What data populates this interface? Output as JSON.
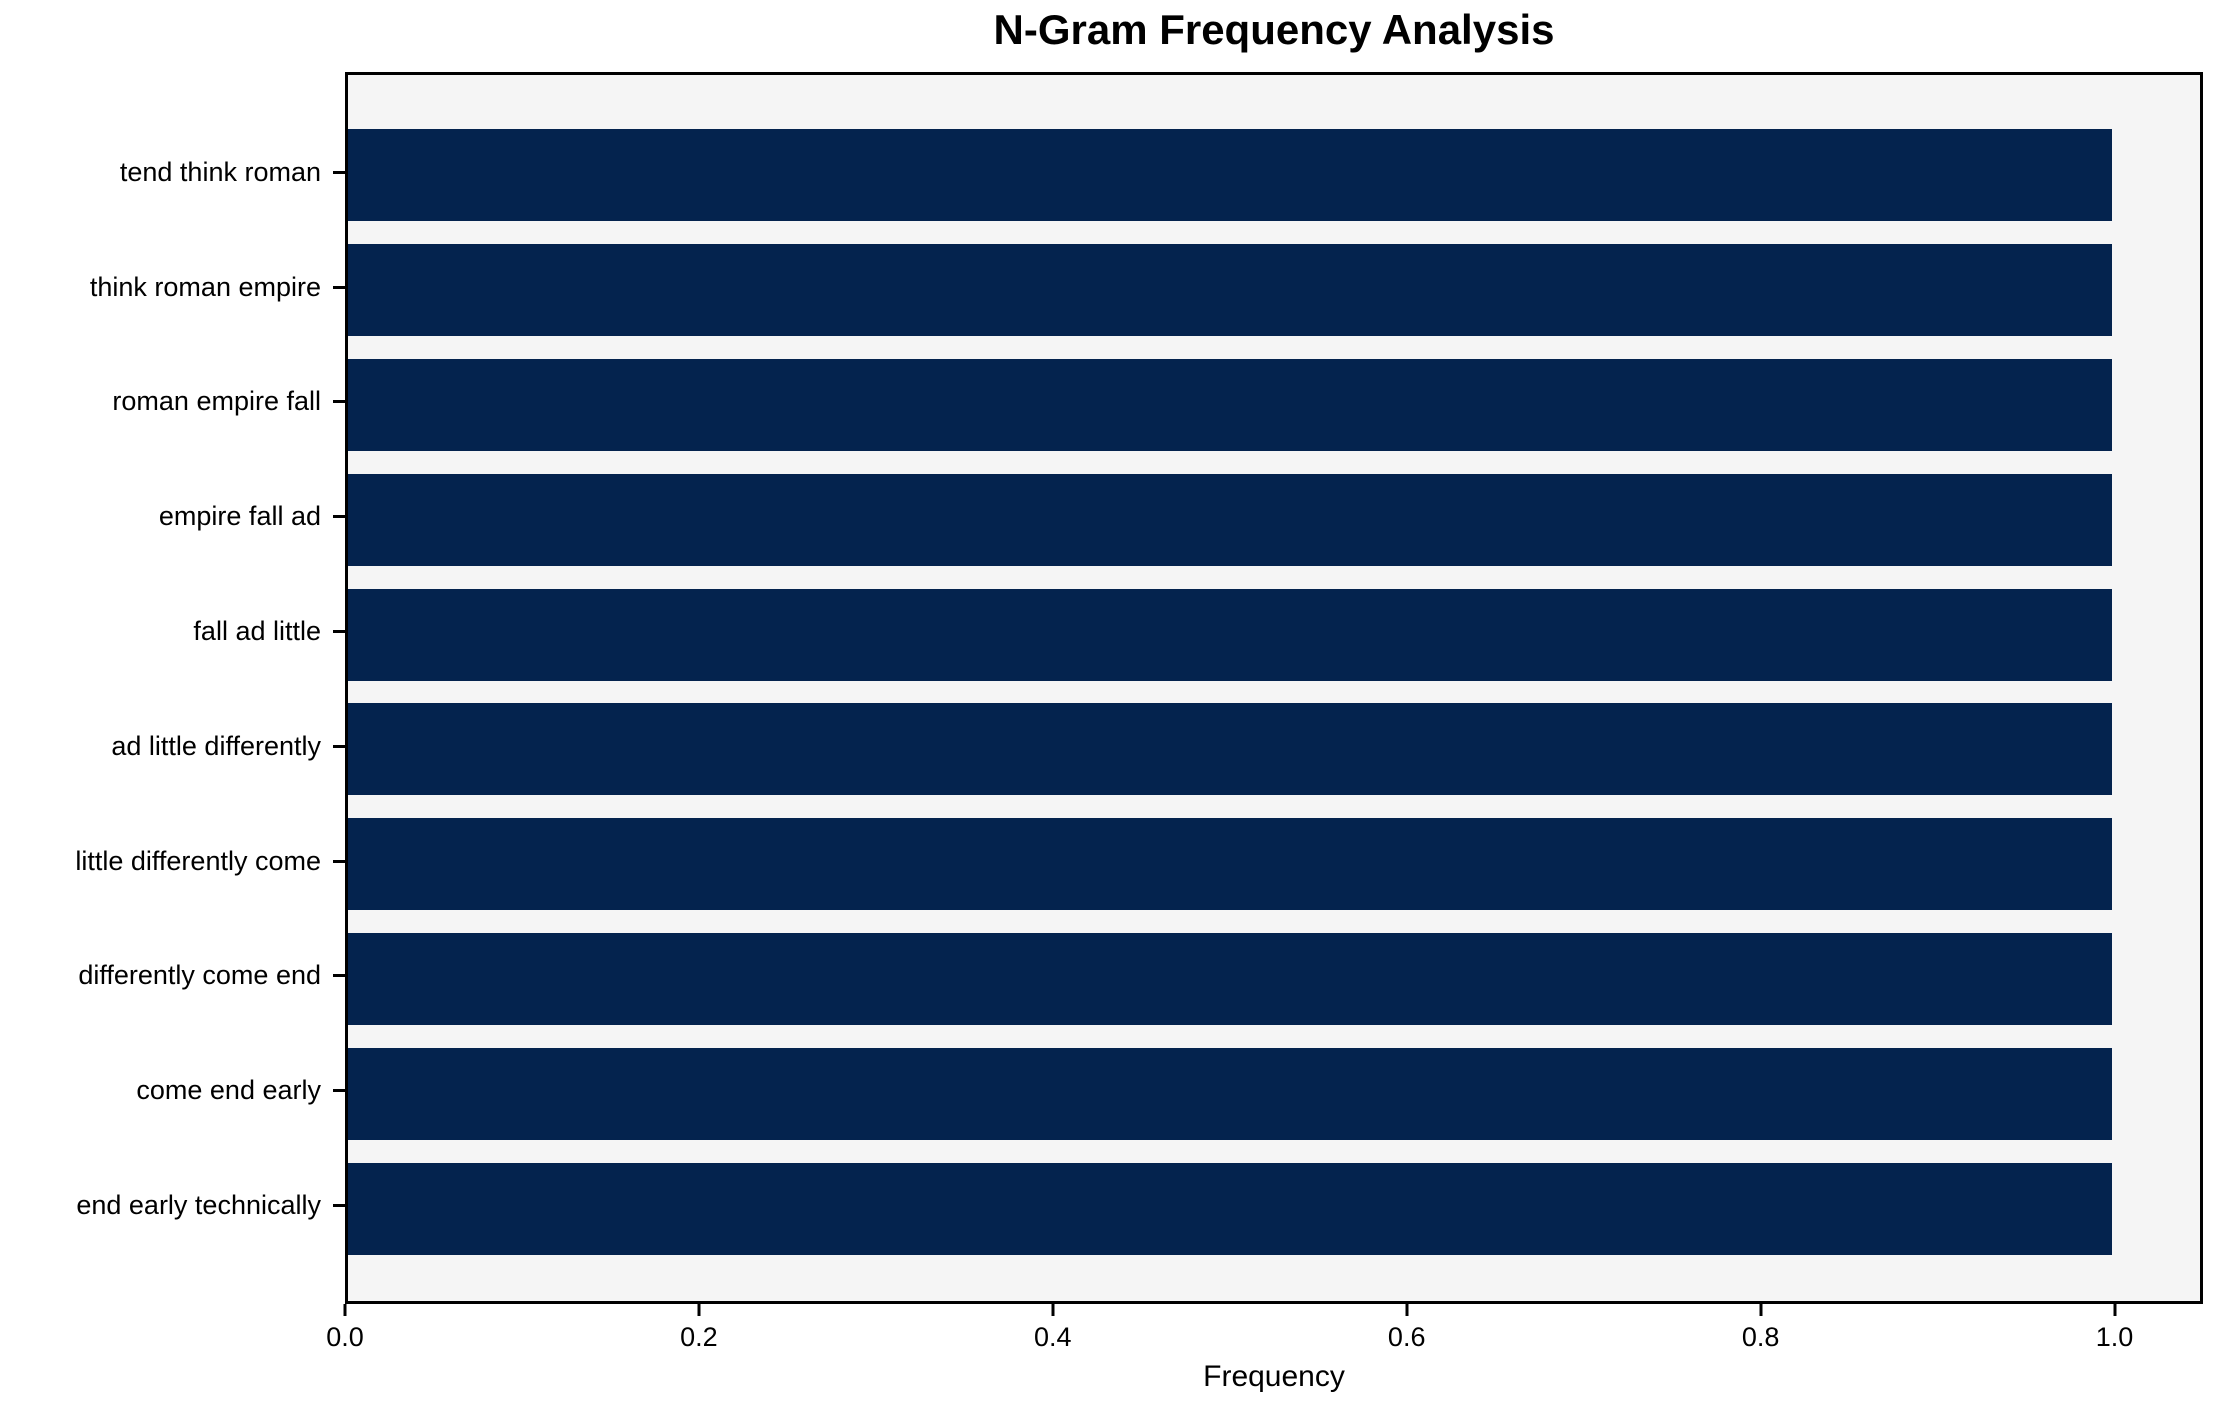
{
  "title": "N-Gram Frequency Analysis",
  "chart_data": {
    "type": "bar",
    "orientation": "horizontal",
    "title": "N-Gram Frequency Analysis",
    "xlabel": "Frequency",
    "ylabel": "",
    "categories": [
      "tend think roman",
      "think roman empire",
      "roman empire fall",
      "empire fall ad",
      "fall ad little",
      "ad little differently",
      "little differently come",
      "differently come end",
      "come end early",
      "end early technically"
    ],
    "values": [
      1.0,
      1.0,
      1.0,
      1.0,
      1.0,
      1.0,
      1.0,
      1.0,
      1.0,
      1.0
    ],
    "xticks": [
      0.0,
      0.2,
      0.4,
      0.6,
      0.8,
      1.0
    ],
    "xtick_labels": [
      "0.0",
      "0.2",
      "0.4",
      "0.6",
      "0.8",
      "1.0"
    ],
    "xlim": [
      0,
      1.05
    ],
    "grid": false,
    "legend": null,
    "bar_color": "#04234e",
    "plot_background": "#f5f5f5",
    "figure_background": "#ffffff",
    "spine_color": "#000000"
  }
}
